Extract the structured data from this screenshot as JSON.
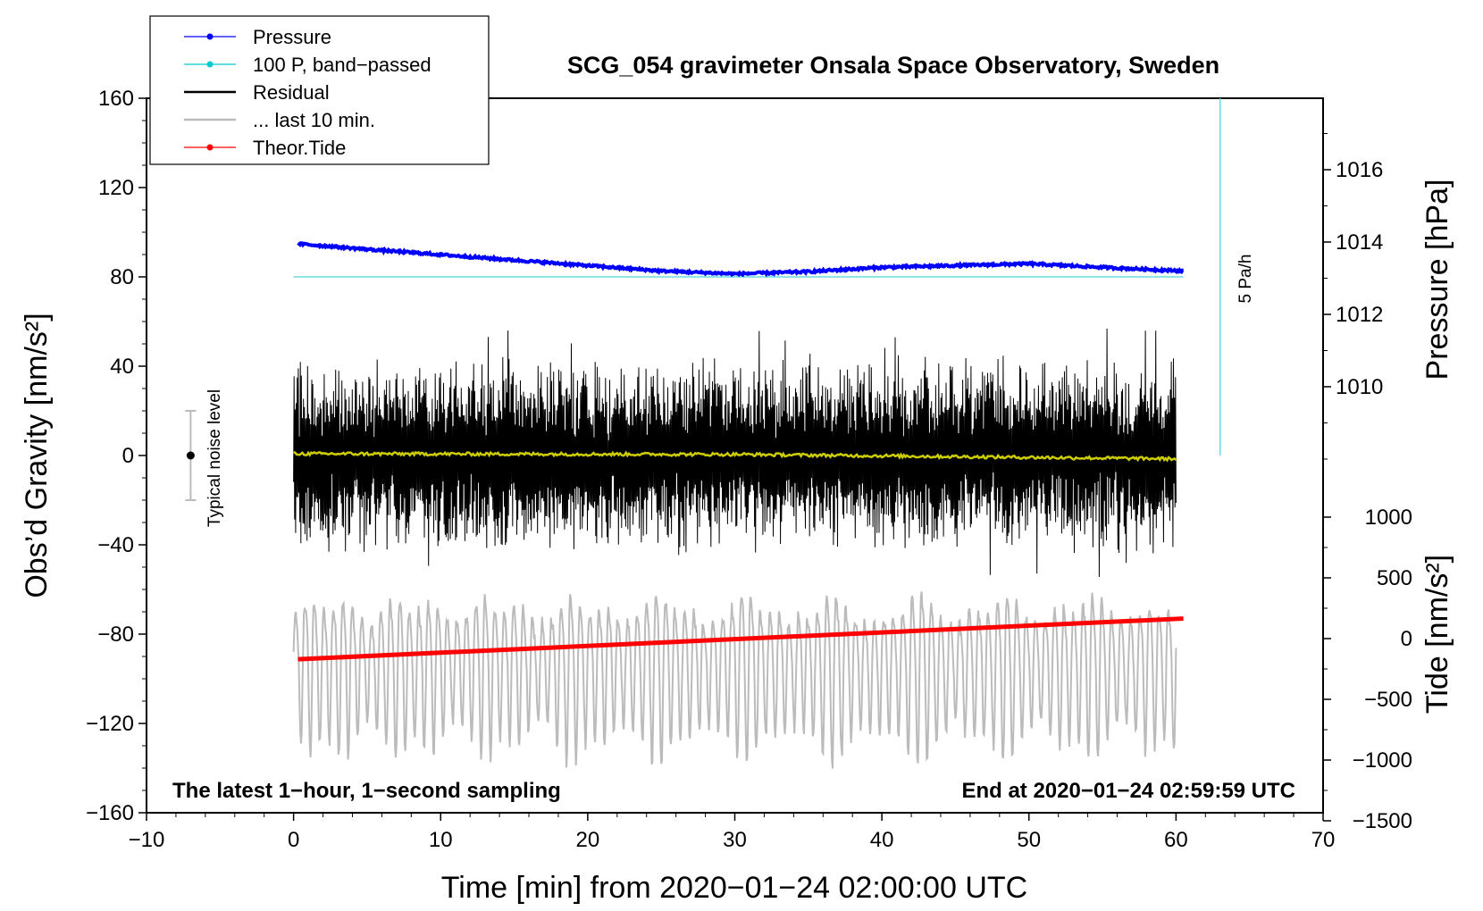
{
  "chart_data": {
    "type": "line",
    "title": "SCG_054 gravimeter Onsala Space Observatory, Sweden",
    "xlabel": "Time [min] from 2020−01−24 02:00:00 UTC",
    "ylabel_left": "Obs’d Gravity [nm/s²]",
    "ylabel_pressure": "Pressure [hPa]",
    "ylabel_tide": "Tide [nm/s²]",
    "xlim": [
      -10,
      70
    ],
    "ylim_left": [
      -160,
      160
    ],
    "x_ticks": [
      "−10",
      "0",
      "10",
      "20",
      "30",
      "40",
      "50",
      "60",
      "70"
    ],
    "x_tick_values": [
      -10,
      0,
      10,
      20,
      30,
      40,
      50,
      60,
      70
    ],
    "y_ticks_left": [
      "−160",
      "−120",
      "−80",
      "−40",
      "0",
      "40",
      "80",
      "120",
      "160"
    ],
    "y_tick_values_left": [
      -160,
      -120,
      -80,
      -40,
      0,
      40,
      80,
      120,
      160
    ],
    "pressure_axis": {
      "range_hPa": [
        1007,
        1018
      ],
      "ticks": [
        "1010",
        "1012",
        "1014",
        "1016"
      ],
      "tick_values": [
        1010,
        1012,
        1014,
        1016
      ]
    },
    "tide_axis": {
      "range_nms2": [
        -1500,
        1000
      ],
      "ticks": [
        "−1500",
        "−1000",
        "−500",
        "0",
        "500",
        "1000"
      ],
      "tick_values": [
        -1500,
        -1000,
        -500,
        0,
        500,
        1000
      ]
    },
    "legend": {
      "placement": "top-left",
      "entries": [
        {
          "label": "Pressure",
          "color": "#0000ff",
          "marker": true
        },
        {
          "label": "100 P, band−passed",
          "color": "#00cccc",
          "marker": true
        },
        {
          "label": "Residual",
          "color": "#000000",
          "marker": false
        },
        {
          "label": "... last 10 min.",
          "color": "#bbbbbb",
          "marker": false
        },
        {
          "label": "Theor.Tide",
          "color": "#ff0000",
          "marker": true
        }
      ]
    },
    "series": [
      {
        "name": "Pressure",
        "color": "#0000ff",
        "unit": "hPa",
        "x": [
          0.3,
          5,
          10,
          15,
          20,
          25,
          30,
          35,
          40,
          45,
          50,
          55,
          60.5
        ],
        "values": [
          1013.95,
          1013.8,
          1013.65,
          1013.5,
          1013.35,
          1013.2,
          1013.12,
          1013.18,
          1013.3,
          1013.35,
          1013.4,
          1013.3,
          1013.2
        ]
      },
      {
        "name": "100 P, band−passed",
        "color": "#00cccc",
        "unit": "nm/s²",
        "x": [
          0,
          60.5
        ],
        "values": [
          80,
          80
        ]
      },
      {
        "name": "Residual",
        "color": "#000000",
        "unit": "nm/s²",
        "x_range": [
          0,
          60
        ],
        "typical_range": [
          -45,
          45
        ],
        "extremes": [
          -62,
          62
        ]
      },
      {
        "name": "Residual mean",
        "color": "#cccc00",
        "unit": "nm/s²",
        "x": [
          0,
          30,
          60
        ],
        "values": [
          0.8,
          0.5,
          -1.5
        ]
      },
      {
        "name": "... last 10 min.",
        "color": "#bbbbbb",
        "unit": "nm/s²",
        "x_range": [
          0,
          60
        ],
        "center": -94,
        "typical_range": [
          -145,
          -60
        ]
      },
      {
        "name": "Theor.Tide",
        "color": "#ff0000",
        "unit": "nm/s²",
        "x": [
          0.3,
          60.5
        ],
        "values": [
          -170,
          165
        ]
      }
    ],
    "noise_bar": {
      "label": "Typical noise level",
      "x": -7,
      "center": 0,
      "range": [
        -20,
        20
      ]
    },
    "pressure_rate_bar": {
      "label": "5 Pa/h",
      "x": 63,
      "y_range": [
        0,
        160
      ]
    },
    "annotations": {
      "bottom_left": "The latest 1−hour, 1−second sampling",
      "bottom_right": "End at 2020−01−24 02:59:59 UTC"
    }
  }
}
